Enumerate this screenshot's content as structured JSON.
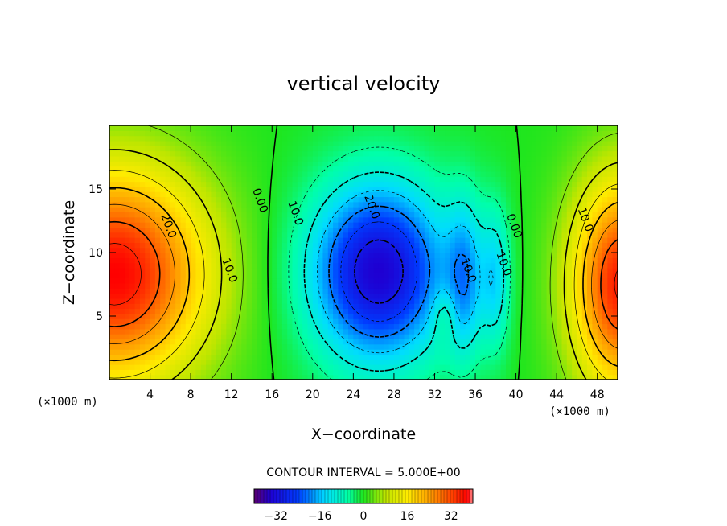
{
  "chart_data": {
    "type": "heatmap",
    "title": "vertical velocity",
    "xlabel": "X−coordinate",
    "ylabel": "Z−coordinate",
    "x_unit_label": "(×1000 m)",
    "y_unit_label": "(×1000 m)",
    "xlim": [
      0,
      50
    ],
    "ylim": [
      0,
      20
    ],
    "x_ticks": [
      4,
      8,
      12,
      16,
      20,
      24,
      28,
      32,
      36,
      40,
      44,
      48
    ],
    "y_ticks": [
      5,
      10,
      15
    ],
    "contour_interval_text": "CONTOUR INTERVAL = 5.000E+00",
    "contour_interval": 5.0,
    "colorbar": {
      "range": [
        -40,
        40
      ],
      "ticks": [
        -32,
        -16,
        0,
        16,
        32
      ],
      "tick_labels": [
        "−32",
        "−16",
        "0",
        "16",
        "32"
      ]
    },
    "contour_labels": [
      {
        "text": "20.0",
        "x": 5.5,
        "z": 12.0
      },
      {
        "text": "10.0",
        "x": 11.5,
        "z": 8.5
      },
      {
        "text": "0.00",
        "x": 14.5,
        "z": 14.0
      },
      {
        "text": "10.0",
        "x": 18.0,
        "z": 13.0
      },
      {
        "text": "20.0",
        "x": 25.5,
        "z": 13.5
      },
      {
        "text": "10.0",
        "x": 35.0,
        "z": 8.5
      },
      {
        "text": "10.0",
        "x": 38.5,
        "z": 9.0
      },
      {
        "text": "0.00",
        "x": 39.5,
        "z": 12.0
      },
      {
        "text": "10.0",
        "x": 46.5,
        "z": 12.5
      }
    ],
    "features": [
      {
        "sign": "positive",
        "x": 0.5,
        "z": 8.3,
        "sx": 6.5,
        "sz": 6.0,
        "amp": 38
      },
      {
        "sign": "positive",
        "x": 50.5,
        "z": 7.5,
        "sx": 3.6,
        "sz": 6.0,
        "amp": 36
      },
      {
        "sign": "negative",
        "x": 26.5,
        "z": 8.5,
        "sx": 4.8,
        "sz": 5.0,
        "amp": -34
      },
      {
        "sign": "negative",
        "x": 35.0,
        "z": 8.0,
        "sx": 1.3,
        "sz": 4.5,
        "amp": -14
      },
      {
        "sign": "negative",
        "x": 38.0,
        "z": 8.0,
        "sx": 1.0,
        "sz": 4.0,
        "amp": -12
      },
      {
        "sign": "positive",
        "x": 33.0,
        "z": 5.0,
        "sx": 0.8,
        "sz": 1.5,
        "amp": 6
      }
    ]
  }
}
